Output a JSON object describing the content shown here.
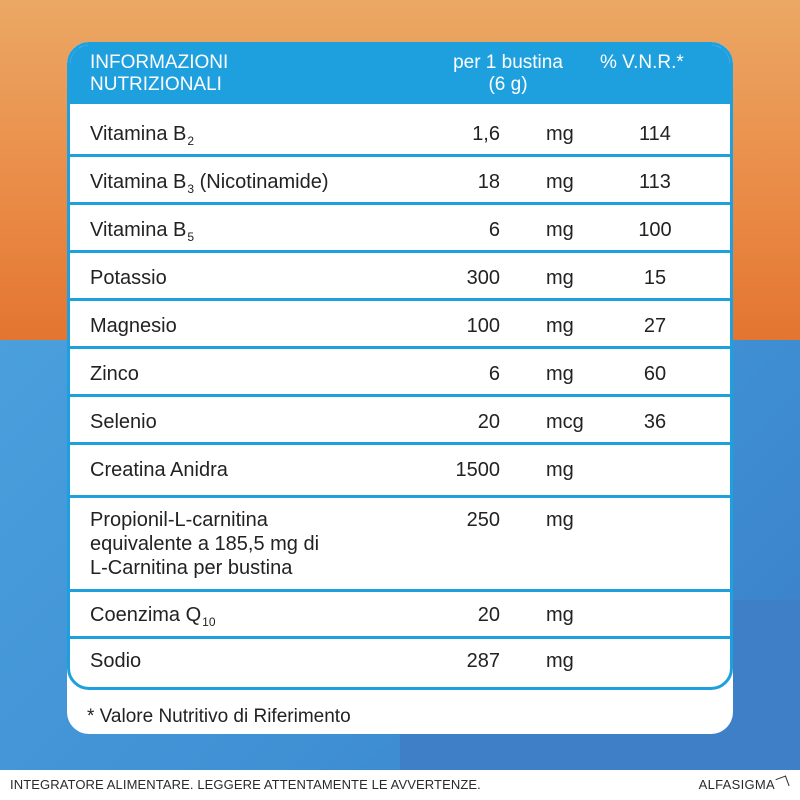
{
  "table": {
    "header": {
      "title_line1": "INFORMAZIONI",
      "title_line2": "NUTRIZIONALI",
      "per_line1": "per 1 bustina",
      "per_line2": "(6 g)",
      "vnr": "% V.N.R.*"
    },
    "rows": [
      {
        "name": "Vitamina B",
        "sub": "2",
        "rest": "",
        "qty": "1,6",
        "unit": "mg",
        "vnr": "114"
      },
      {
        "name": "Vitamina B",
        "sub": "3",
        "rest": " (Nicotinamide)",
        "qty": "18",
        "unit": "mg",
        "vnr": "113"
      },
      {
        "name": "Vitamina B",
        "sub": "5",
        "rest": "",
        "qty": "6",
        "unit": "mg",
        "vnr": "100"
      },
      {
        "name": "Potassio",
        "sub": "",
        "rest": "",
        "qty": "300",
        "unit": "mg",
        "vnr": "15"
      },
      {
        "name": "Magnesio",
        "sub": "",
        "rest": "",
        "qty": "100",
        "unit": "mg",
        "vnr": "27"
      },
      {
        "name": "Zinco",
        "sub": "",
        "rest": "",
        "qty": "6",
        "unit": "mg",
        "vnr": "60"
      },
      {
        "name": "Selenio",
        "sub": "",
        "rest": "",
        "qty": "20",
        "unit": "mcg",
        "vnr": "36"
      },
      {
        "name": "Creatina Anidra",
        "sub": "",
        "rest": "",
        "qty": "1500",
        "unit": "mg",
        "vnr": ""
      },
      {
        "name_lines": [
          "Propionil-L-carnitina",
          "equivalente a 185,5 mg di",
          "L-Carnitina per bustina"
        ],
        "qty": "250",
        "unit": "mg",
        "vnr": ""
      },
      {
        "name": "Coenzima Q",
        "sub": "10",
        "rest": "",
        "qty": "20",
        "unit": "mg",
        "vnr": ""
      },
      {
        "name": "Sodio",
        "sub": "",
        "rest": "",
        "qty": "287",
        "unit": "mg",
        "vnr": ""
      }
    ]
  },
  "note": "* Valore Nutritivo di Riferimento",
  "footer": {
    "disclaimer": "INTEGRATORE ALIMENTARE. LEGGERE ATTENTAMENTE LE AVVERTENZE.",
    "brand": "ALFASIGMA"
  },
  "colors": {
    "accent_blue": "#1ea0df",
    "bg_orange": "#e98a45",
    "bg_blue": "#4a9fdc"
  }
}
